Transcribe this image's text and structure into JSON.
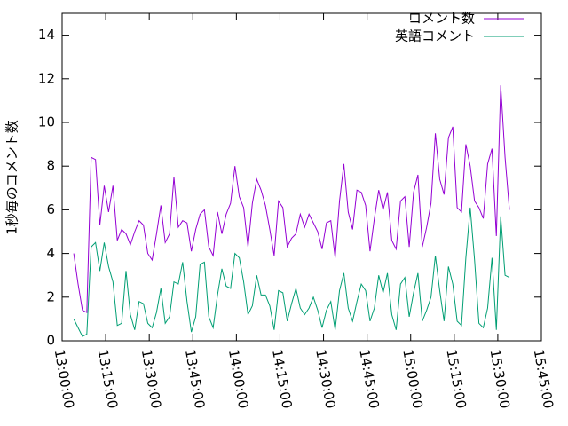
{
  "chart_data": {
    "type": "line",
    "ylabel": "1秒毎のコメント数",
    "legend": "top-right",
    "xlim": [
      "13:00:00",
      "15:45:00"
    ],
    "xticks": [
      "13:00:00",
      "13:15:00",
      "13:30:00",
      "13:45:00",
      "14:00:00",
      "14:15:00",
      "14:30:00",
      "14:45:00",
      "15:00:00",
      "15:15:00",
      "15:30:00",
      "15:45:00"
    ],
    "ylim": [
      0,
      15
    ],
    "yticks": [
      0,
      2,
      4,
      6,
      8,
      10,
      12,
      14
    ],
    "x": [
      "13:04:00",
      "13:05:30",
      "13:07:00",
      "13:08:30",
      "13:10:00",
      "13:11:30",
      "13:13:00",
      "13:14:30",
      "13:16:00",
      "13:17:30",
      "13:19:00",
      "13:20:30",
      "13:22:00",
      "13:23:30",
      "13:25:00",
      "13:26:30",
      "13:28:00",
      "13:29:30",
      "13:31:00",
      "13:32:30",
      "13:34:00",
      "13:35:30",
      "13:37:00",
      "13:38:30",
      "13:40:00",
      "13:41:30",
      "13:43:00",
      "13:44:30",
      "13:46:00",
      "13:47:30",
      "13:49:00",
      "13:50:30",
      "13:52:00",
      "13:53:30",
      "13:55:00",
      "13:56:30",
      "13:58:00",
      "13:59:30",
      "14:01:00",
      "14:02:30",
      "14:04:00",
      "14:05:30",
      "14:07:00",
      "14:08:30",
      "14:10:00",
      "14:11:30",
      "14:13:00",
      "14:14:30",
      "14:16:00",
      "14:17:30",
      "14:19:00",
      "14:20:30",
      "14:22:00",
      "14:23:30",
      "14:25:00",
      "14:26:30",
      "14:28:00",
      "14:29:30",
      "14:31:00",
      "14:32:30",
      "14:34:00",
      "14:35:30",
      "14:37:00",
      "14:38:30",
      "14:40:00",
      "14:41:30",
      "14:43:00",
      "14:44:30",
      "14:46:00",
      "14:47:30",
      "14:49:00",
      "14:50:30",
      "14:52:00",
      "14:53:30",
      "14:55:00",
      "14:56:30",
      "14:58:00",
      "14:59:30",
      "15:01:00",
      "15:02:30",
      "15:04:00",
      "15:05:30",
      "15:07:00",
      "15:08:30",
      "15:10:00",
      "15:11:30",
      "15:13:00",
      "15:14:30",
      "15:16:00",
      "15:17:30",
      "15:19:00",
      "15:20:30",
      "15:22:00",
      "15:23:30",
      "15:25:00",
      "15:26:30",
      "15:28:00",
      "15:29:30",
      "15:31:00",
      "15:32:30",
      "15:34:00"
    ],
    "series": [
      {
        "name": "コメント数",
        "color": "#9400d3",
        "values": [
          4.0,
          2.6,
          1.4,
          1.3,
          8.4,
          8.3,
          5.3,
          7.1,
          5.9,
          7.1,
          4.6,
          5.1,
          4.9,
          4.4,
          5.0,
          5.5,
          5.3,
          4.0,
          3.7,
          4.9,
          6.2,
          4.5,
          4.9,
          7.5,
          5.2,
          5.5,
          5.4,
          4.1,
          5.1,
          5.8,
          6.0,
          4.3,
          3.9,
          5.9,
          4.9,
          5.8,
          6.3,
          8.0,
          6.6,
          6.1,
          4.3,
          6.3,
          7.4,
          6.9,
          6.2,
          5.1,
          3.9,
          6.4,
          6.1,
          4.3,
          4.7,
          4.9,
          5.8,
          5.2,
          5.8,
          5.4,
          5.0,
          4.2,
          5.4,
          5.5,
          3.8,
          6.4,
          8.1,
          5.9,
          5.1,
          6.9,
          6.8,
          6.2,
          4.1,
          5.6,
          6.9,
          6.0,
          6.8,
          4.6,
          4.2,
          6.4,
          6.6,
          4.3,
          6.8,
          7.6,
          4.3,
          5.2,
          6.3,
          9.5,
          7.4,
          6.7,
          9.3,
          9.8,
          6.1,
          5.9,
          9.0,
          8.0,
          6.4,
          6.1,
          5.6,
          8.1,
          8.8,
          4.8,
          11.7,
          8.4,
          6.0
        ]
      },
      {
        "name": "英語コメント",
        "color": "#009e73",
        "values": [
          1.0,
          0.6,
          0.2,
          0.3,
          4.3,
          4.5,
          3.2,
          4.5,
          3.4,
          2.7,
          0.7,
          0.8,
          3.2,
          1.2,
          0.5,
          1.8,
          1.7,
          0.8,
          0.6,
          1.3,
          2.4,
          0.8,
          1.1,
          2.7,
          2.6,
          3.6,
          1.8,
          0.4,
          1.1,
          3.5,
          3.6,
          1.1,
          0.6,
          2.1,
          3.3,
          2.5,
          2.4,
          4.0,
          3.8,
          2.7,
          1.2,
          1.6,
          3.0,
          2.1,
          2.1,
          1.6,
          0.5,
          2.3,
          2.2,
          0.9,
          1.7,
          2.4,
          1.5,
          1.2,
          1.5,
          2.0,
          1.4,
          0.6,
          1.4,
          1.8,
          0.5,
          2.3,
          3.1,
          1.5,
          0.9,
          1.8,
          2.6,
          2.3,
          0.9,
          1.5,
          3.0,
          2.2,
          3.1,
          1.2,
          0.5,
          2.6,
          2.9,
          1.1,
          2.2,
          3.1,
          0.9,
          1.4,
          2.0,
          3.9,
          2.3,
          0.9,
          3.4,
          2.6,
          0.9,
          0.7,
          3.8,
          6.1,
          3.7,
          0.8,
          0.6,
          1.5,
          3.8,
          0.5,
          5.7,
          3.0,
          2.9
        ]
      }
    ]
  }
}
